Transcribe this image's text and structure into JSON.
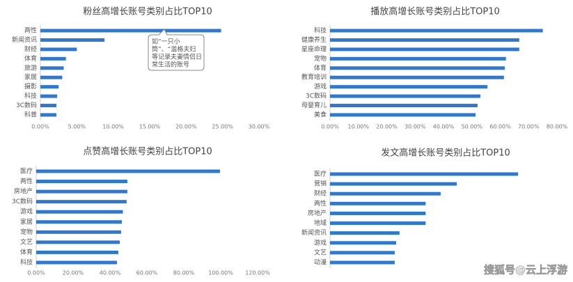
{
  "chart_data": [
    {
      "type": "bar",
      "orientation": "horizontal",
      "title": "粉丝高增长账号类别占比TOP10",
      "color": "#2f78d0",
      "categories": [
        "两性",
        "新闻资讯",
        "财经",
        "体育",
        "旅游",
        "家居",
        "摄影",
        "科技",
        "3C数码",
        "科普"
      ],
      "values": [
        24.8,
        8.8,
        5.0,
        3.5,
        3.2,
        3.0,
        2.5,
        2.3,
        2.2,
        2.2
      ],
      "xlim": [
        0,
        30
      ],
      "xticks": [
        {
          "value": 0,
          "label": "0.00%"
        },
        {
          "value": 5,
          "label": "5.00%"
        },
        {
          "value": 10,
          "label": "10.00%"
        },
        {
          "value": 15,
          "label": "15.00%"
        },
        {
          "value": 20,
          "label": "20.00%"
        },
        {
          "value": 25,
          "label": "25.00%"
        },
        {
          "value": 30,
          "label": "30.00%"
        }
      ],
      "annotation": [
        "如“一只小",
        "筒”、“滥格夫妇",
        "等记录夫妻情侣日",
        "常生活的账号"
      ]
    },
    {
      "type": "bar",
      "orientation": "horizontal",
      "title": "播放高增长账号类别占比TOP10",
      "color": "#2f78d0",
      "categories": [
        "科技",
        "健康养生",
        "星座命理",
        "宠物",
        "体育",
        "教育培训",
        "游戏",
        "3C数码",
        "母婴育儿",
        "美食"
      ],
      "values": [
        75,
        66.7,
        66.7,
        62,
        61.6,
        61.3,
        55.5,
        53,
        52,
        51.3
      ],
      "xlim": [
        0,
        80
      ],
      "xticks": [
        {
          "value": 0,
          "label": "0.00%"
        },
        {
          "value": 10,
          "label": "10.00%"
        },
        {
          "value": 20,
          "label": "20.00%"
        },
        {
          "value": 30,
          "label": "30.00%"
        },
        {
          "value": 40,
          "label": "40.00%"
        },
        {
          "value": 50,
          "label": "50.00%"
        },
        {
          "value": 60,
          "label": "60.00%"
        },
        {
          "value": 70,
          "label": "70.00%"
        },
        {
          "value": 80,
          "label": "80.00%"
        }
      ]
    },
    {
      "type": "bar",
      "orientation": "horizontal",
      "title": "点赞高增长账号类别占比TOP10",
      "color": "#2f78d0",
      "categories": [
        "医疗",
        "两性",
        "房地产",
        "3C数码",
        "游戏",
        "家居",
        "宠物",
        "文艺",
        "体育",
        "科技"
      ],
      "values": [
        99.6,
        49.4,
        49.4,
        49,
        47,
        46.4,
        46,
        45.3,
        44.5,
        43.8
      ],
      "xlim": [
        0,
        120
      ],
      "xticks": [
        {
          "value": 0,
          "label": "0.00%"
        },
        {
          "value": 20,
          "label": "20.00%"
        },
        {
          "value": 40,
          "label": "40.00%"
        },
        {
          "value": 60,
          "label": "60.00%"
        },
        {
          "value": 80,
          "label": "80.00%"
        },
        {
          "value": 100,
          "label": "100.00%"
        },
        {
          "value": 120,
          "label": "120.00%"
        }
      ]
    },
    {
      "type": "bar",
      "orientation": "horizontal",
      "title": "发文高增长账号类别占比TOP10",
      "color": "#2f78d0",
      "categories": [
        "医疗",
        "营销",
        "财经",
        "两性",
        "房地产",
        "地域",
        "新闻资讯",
        "游戏",
        "文艺",
        "动漫"
      ],
      "values": [
        66.3,
        44.7,
        39,
        33.7,
        33.7,
        33.7,
        24.5,
        23.3,
        22.8,
        22.8
      ],
      "xlim": [
        0,
        80
      ],
      "watermark": "搜狐号@云上浮游"
    }
  ]
}
